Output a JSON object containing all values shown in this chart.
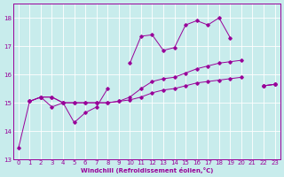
{
  "xlabel": "Windchill (Refroidissement éolien,°C)",
  "background_color": "#c8ecec",
  "line_color": "#990099",
  "grid_color": "#ffffff",
  "ylim": [
    13,
    18.5
  ],
  "xlim": [
    -0.5,
    23.5
  ],
  "yticks": [
    13,
    14,
    15,
    16,
    17,
    18
  ],
  "xticks": [
    0,
    1,
    2,
    3,
    4,
    5,
    6,
    7,
    8,
    9,
    10,
    11,
    12,
    13,
    14,
    15,
    16,
    17,
    18,
    19,
    20,
    21,
    22,
    23
  ],
  "fontsize": 5.0,
  "marker": "D",
  "markersize": 1.8,
  "linewidth": 0.7,
  "y_upper": [
    null,
    15.05,
    15.2,
    14.85,
    15.0,
    14.3,
    14.65,
    14.85,
    15.5,
    null,
    16.4,
    17.35,
    17.4,
    16.85,
    16.95,
    17.75,
    17.9,
    17.75,
    18.0,
    17.3,
    null,
    null,
    15.6,
    15.65
  ],
  "y_mid": [
    null,
    15.05,
    15.2,
    15.2,
    15.0,
    15.0,
    15.0,
    15.0,
    15.0,
    15.05,
    15.2,
    15.5,
    15.75,
    15.85,
    15.9,
    16.05,
    16.2,
    16.3,
    16.4,
    16.45,
    16.5,
    null,
    15.6,
    15.65
  ],
  "y_lower": [
    13.4,
    15.05,
    15.2,
    15.2,
    15.0,
    15.0,
    15.0,
    15.0,
    15.0,
    15.05,
    15.1,
    15.2,
    15.35,
    15.45,
    15.5,
    15.6,
    15.7,
    15.75,
    15.8,
    15.85,
    15.9,
    null,
    15.6,
    15.65
  ]
}
